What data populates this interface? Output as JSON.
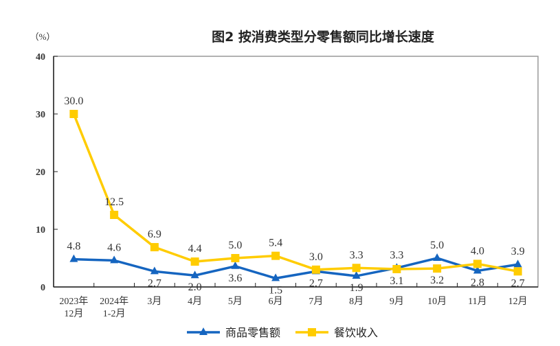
{
  "chart_data": {
    "type": "line",
    "title": "图2 按消费类型分零售额同比增长速度",
    "ylabel": "（%）",
    "ylim": [
      0,
      40
    ],
    "yticks": [
      0,
      10,
      20,
      30,
      40
    ],
    "grid": false,
    "legend_position": "bottom",
    "categories": [
      [
        "2023年",
        "12月"
      ],
      [
        "2024年",
        "1-2月"
      ],
      [
        "3月"
      ],
      [
        "4月"
      ],
      [
        "5月"
      ],
      [
        "6月"
      ],
      [
        "7月"
      ],
      [
        "8月"
      ],
      [
        "9月"
      ],
      [
        "10月"
      ],
      [
        "11月"
      ],
      [
        "12月"
      ]
    ],
    "series": [
      {
        "name": "商品零售额",
        "color": "#1565c0",
        "marker": "triangle",
        "values": [
          4.8,
          4.6,
          2.7,
          2.0,
          3.6,
          1.5,
          2.7,
          1.9,
          3.3,
          5.0,
          2.8,
          3.9
        ]
      },
      {
        "name": "餐饮收入",
        "color": "#ffcc00",
        "marker": "square",
        "values": [
          30.0,
          12.5,
          6.9,
          4.4,
          5.0,
          5.4,
          3.0,
          3.3,
          3.1,
          3.2,
          4.0,
          2.7
        ]
      }
    ]
  }
}
